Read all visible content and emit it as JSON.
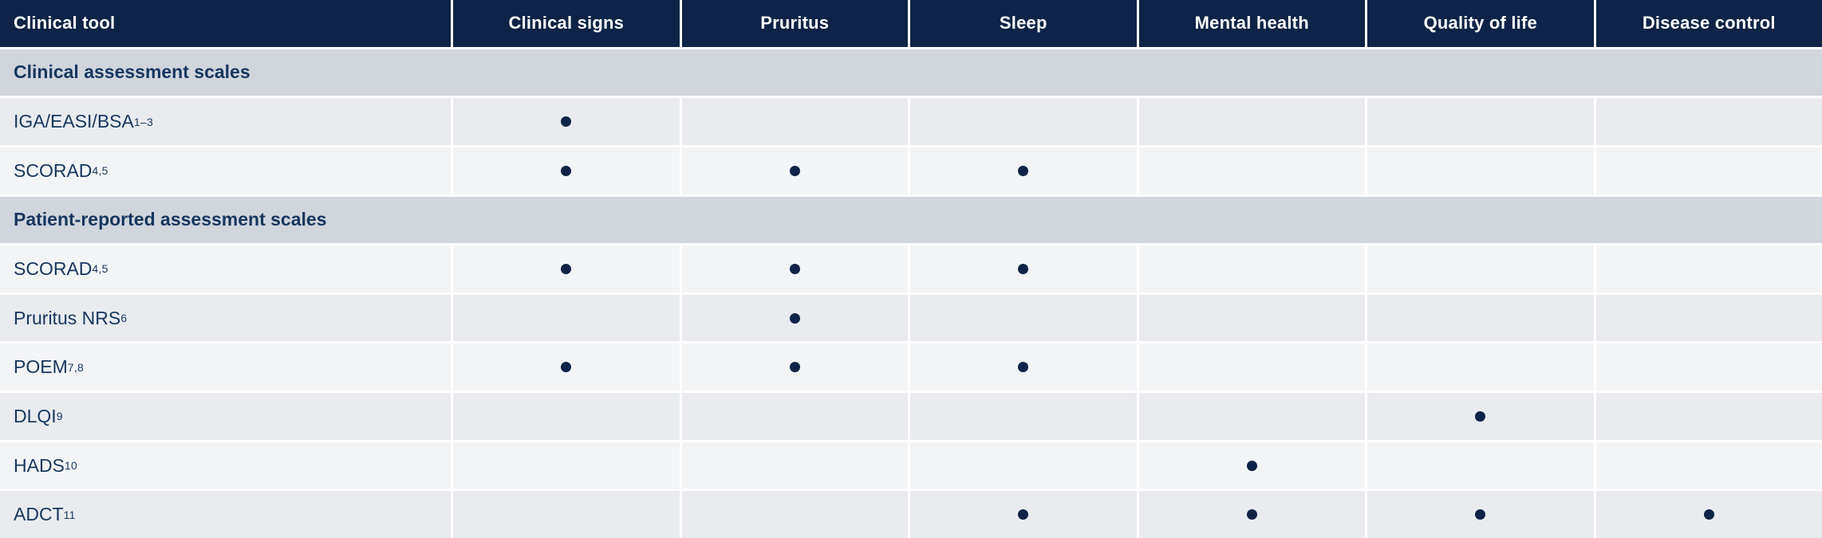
{
  "table": {
    "columns": [
      {
        "label": "Clinical tool"
      },
      {
        "label": "Clinical signs"
      },
      {
        "label": "Pruritus"
      },
      {
        "label": "Sleep"
      },
      {
        "label": "Mental health"
      },
      {
        "label": "Quality of life"
      },
      {
        "label": "Disease control"
      }
    ],
    "rows": [
      {
        "type": "section",
        "label": "Clinical assessment scales"
      },
      {
        "type": "row",
        "label": "IGA/EASI/BSA",
        "sup": "1–3",
        "dots": [
          1,
          0,
          0,
          0,
          0,
          0
        ]
      },
      {
        "type": "row",
        "label": "SCORAD",
        "sup": "4,5",
        "dots": [
          1,
          1,
          1,
          0,
          0,
          0
        ]
      },
      {
        "type": "section",
        "label": "Patient-reported assessment scales"
      },
      {
        "type": "row",
        "label": "SCORAD",
        "sup": "4,5",
        "dots": [
          1,
          1,
          1,
          0,
          0,
          0
        ]
      },
      {
        "type": "row",
        "label": "Pruritus NRS",
        "sup": "6",
        "dots": [
          0,
          1,
          0,
          0,
          0,
          0
        ]
      },
      {
        "type": "row",
        "label": "POEM",
        "sup": "7,8",
        "dots": [
          1,
          1,
          1,
          0,
          0,
          0
        ]
      },
      {
        "type": "row",
        "label": "DLQI",
        "sup": "9",
        "dots": [
          0,
          0,
          0,
          0,
          1,
          0
        ]
      },
      {
        "type": "row",
        "label": "HADS",
        "sup": "10",
        "dots": [
          0,
          0,
          0,
          1,
          0,
          0
        ]
      },
      {
        "type": "row",
        "label": "ADCT",
        "sup": "11",
        "dots": [
          0,
          0,
          1,
          1,
          1,
          1
        ]
      }
    ]
  },
  "icons": {
    "dot_marker": "filled-circle"
  },
  "colors": {
    "header_bg": "#0e2347",
    "section_bg": "#d1d5dc",
    "row_dark": "#e9ebef",
    "row_light": "#f3f4f6",
    "text_navy": "#17365f",
    "header_text": "#ffffff",
    "dot": "#0e2347",
    "gap": "#ffffff"
  }
}
